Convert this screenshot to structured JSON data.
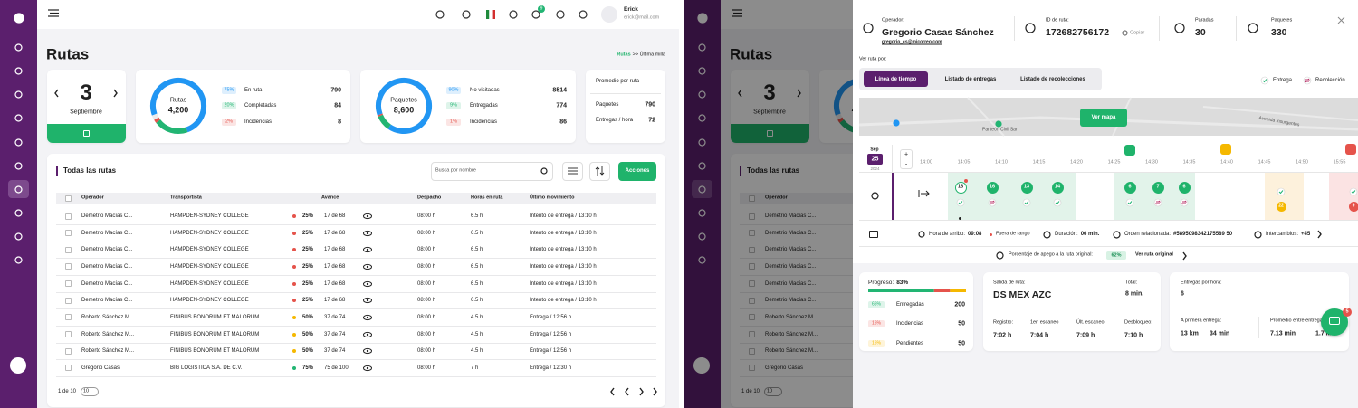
{
  "user": {
    "name": "Erick",
    "email": "erick@mail.com",
    "notifications": "9"
  },
  "page": {
    "title": "Rutas",
    "breadcrumb_link": "Rutas",
    "breadcrumb_rest": ">> Última milla"
  },
  "date": {
    "day": "3",
    "month": "Septiembre"
  },
  "routes_summary": {
    "label": "Rutas",
    "total": "4,200",
    "items": [
      {
        "pct": {
          "value": 75,
          "label": "75%"
        },
        "label": "En ruta",
        "value": "790",
        "color": "#2196f3"
      },
      {
        "pct": {
          "value": 20,
          "label": "20%"
        },
        "label": "Completadas",
        "value": "84",
        "color": "#22b573"
      },
      {
        "pct": {
          "value": 2,
          "label": "2%"
        },
        "label": "Incidencias",
        "value": "8",
        "color": "#e5534b"
      }
    ]
  },
  "packages_summary": {
    "label": "Paquetes",
    "total": "8,600",
    "items": [
      {
        "pct": {
          "value": 90,
          "label": "90%"
        },
        "label": "No visitadas",
        "value": "8514",
        "color": "#2196f3"
      },
      {
        "pct": {
          "value": 9,
          "label": "9%"
        },
        "label": "Entregadas",
        "value": "774",
        "color": "#22b573"
      },
      {
        "pct": {
          "value": 1,
          "label": "1%"
        },
        "label": "Incidencias",
        "value": "86",
        "color": "#e5534b"
      }
    ]
  },
  "averages": {
    "title": "Promedio por ruta",
    "rows": [
      {
        "label": "Paquetes",
        "value": "790"
      },
      {
        "label": "Entregas / hora",
        "value": "72"
      }
    ]
  },
  "table": {
    "title": "Todas las rutas",
    "search_placeholder": "Busca por nombre",
    "action": "Acciones",
    "headers": [
      "Operador",
      "Transportista",
      "Avance",
      "Despacho",
      "Horas en ruta",
      "Último movimiento"
    ],
    "rows": [
      {
        "operator": "Demetrio Macías C...",
        "carrier": "HAMPDEN-SYDNEY COLLEGE",
        "pct": "25%",
        "progress": "17 de 68",
        "dispatch": "08:00 h",
        "hours": "6.5 h",
        "last": "Intento de entrega / 13:10 h",
        "color": "#e5534b"
      },
      {
        "operator": "Demetrio Macías C...",
        "carrier": "HAMPDEN-SYDNEY COLLEGE",
        "pct": "25%",
        "progress": "17 de 68",
        "dispatch": "08:00 h",
        "hours": "6.5 h",
        "last": "Intento de entrega / 13:10 h",
        "color": "#e5534b"
      },
      {
        "operator": "Demetrio Macías C...",
        "carrier": "HAMPDEN-SYDNEY COLLEGE",
        "pct": "25%",
        "progress": "17 de 68",
        "dispatch": "08:00 h",
        "hours": "6.5 h",
        "last": "Intento de entrega / 13:10 h",
        "color": "#e5534b"
      },
      {
        "operator": "Demetrio Macías C...",
        "carrier": "HAMPDEN-SYDNEY COLLEGE",
        "pct": "25%",
        "progress": "17 de 68",
        "dispatch": "08:00 h",
        "hours": "6.5 h",
        "last": "Intento de entrega / 13:10 h",
        "color": "#e5534b"
      },
      {
        "operator": "Demetrio Macías C...",
        "carrier": "HAMPDEN-SYDNEY COLLEGE",
        "pct": "25%",
        "progress": "17 de 68",
        "dispatch": "08:00 h",
        "hours": "6.5 h",
        "last": "Intento de entrega / 13:10 h",
        "color": "#e5534b"
      },
      {
        "operator": "Demetrio Macías C...",
        "carrier": "HAMPDEN-SYDNEY COLLEGE",
        "pct": "25%",
        "progress": "17 de 68",
        "dispatch": "08:00 h",
        "hours": "6.5 h",
        "last": "Intento de entrega / 13:10 h",
        "color": "#e5534b"
      },
      {
        "operator": "Roberto Sánchez M...",
        "carrier": "FINIBUS BONORUM ET MALORUM",
        "pct": "50%",
        "progress": "37 de 74",
        "dispatch": "08:00 h",
        "hours": "4.5 h",
        "last": "Entrega / 12:56 h",
        "color": "#f5b800"
      },
      {
        "operator": "Roberto Sánchez M...",
        "carrier": "FINIBUS BONORUM ET MALORUM",
        "pct": "50%",
        "progress": "37 de 74",
        "dispatch": "08:00 h",
        "hours": "4.5 h",
        "last": "Entrega / 12:56 h",
        "color": "#f5b800"
      },
      {
        "operator": "Roberto Sánchez M...",
        "carrier": "FINIBUS BONORUM ET MALORUM",
        "pct": "50%",
        "progress": "37 de 74",
        "dispatch": "08:00 h",
        "hours": "4.5 h",
        "last": "Entrega / 12:56 h",
        "color": "#f5b800"
      },
      {
        "operator": "Gregorio Casas",
        "carrier": "BIG LOGISTICA S.A. DE C.V.",
        "pct": "75%",
        "progress": "75 de 100",
        "dispatch": "08:00 h",
        "hours": "7 h",
        "last": "Entrega / 12:30 h",
        "color": "#22b573"
      }
    ],
    "page_info": "1 de 10",
    "page_size": "10"
  },
  "route_detail": {
    "operator_label": "Operador:",
    "operator": "Gregorio Casas Sánchez",
    "email": "gregorio_cs@micorreo.com",
    "route_id_label": "ID de ruta:",
    "route_id": "172682756172",
    "copy": "Copiar",
    "stops_label": "Paradas",
    "stops": "30",
    "packages_label": "Paquetes",
    "packages": "330",
    "view_by": "Ver ruta por:",
    "tabs": [
      "Línea de tiempo",
      "Listado de entregas",
      "Listado de recolecciones"
    ],
    "legend": [
      "Entrega",
      "Recolección"
    ],
    "map": {
      "button": "Ver mapa",
      "labels": [
        "Panteón Civil San",
        "Avenida Insurgentes"
      ]
    },
    "timeline": {
      "month": "Sep",
      "day": "25",
      "year": "2024",
      "zoom": [
        "+",
        "-"
      ],
      "times": [
        "14:00",
        "14:05",
        "14:10",
        "14:15",
        "14:20",
        "14:25",
        "14:30",
        "14:35",
        "14:40",
        "14:45",
        "14:50",
        "15:55"
      ],
      "stops": [
        "18",
        "16",
        "13",
        "14",
        "6",
        "7",
        "6"
      ],
      "incidents": [
        "22",
        "9"
      ]
    },
    "info": {
      "arrival_label": "Hora de arribo:",
      "arrival": "09:08",
      "out_of_range": "Fuera de rango",
      "duration_label": "Duración:",
      "duration": "06 min.",
      "order_label": "Orden relacionada:",
      "order": "#5895098342175589 50",
      "exchanges_label": "Intercambios:",
      "exchanges": "+45"
    },
    "adherence": {
      "label": "Porcentaje de apego a la ruta original:",
      "value": "62%",
      "link": "Ver ruta original"
    },
    "progress": {
      "label": "Progreso:",
      "value": "83%",
      "rows": [
        {
          "pct": {
            "value": 66,
            "label": "66%"
          },
          "label": "Entregadas",
          "value": "200",
          "color": "#22b573"
        },
        {
          "pct": {
            "value": 16,
            "label": "16%"
          },
          "label": "Incidencias",
          "value": "50",
          "color": "#e5534b"
        },
        {
          "pct": {
            "value": 16,
            "label": "16%"
          },
          "label": "Pendientes",
          "value": "50",
          "color": "#f5b800"
        }
      ]
    },
    "departure": {
      "label": "Salida de ruta:",
      "value": "DS MEX AZC",
      "total_label": "Total:",
      "total": "8 min.",
      "times": [
        {
          "label": "Registro:",
          "value": "7:02 h"
        },
        {
          "label": "1er. escaneo",
          "value": "7:04 h"
        },
        {
          "label": "Últ. escaneo:",
          "value": "7:09 h"
        },
        {
          "label": "Desbloqueo:",
          "value": "7:10 h"
        }
      ]
    },
    "rates": {
      "per_hour_label": "Entregas por hora:",
      "per_hour": "6",
      "first_label": "A primera entrega:",
      "first_distance": "13 km",
      "first_time": "34 min",
      "avg_label": "Promedio entre entregas",
      "avg_time": "7.13 min",
      "avg_distance": "1.7 km"
    },
    "chat_badge": "5"
  }
}
